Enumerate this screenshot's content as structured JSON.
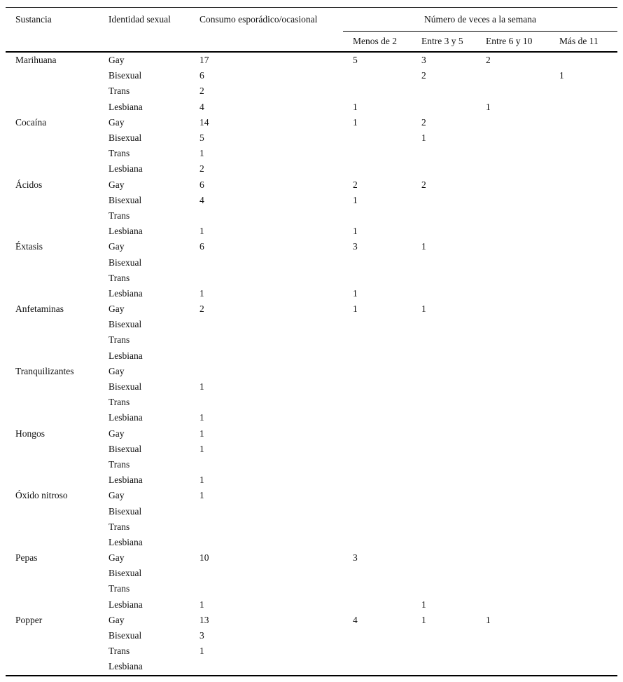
{
  "table": {
    "headers": {
      "sustancia": "Sustancia",
      "identidad": "Identidad sexual",
      "consumo": "Consumo esporádico/ocasional",
      "spanner": "Número de veces a la semana",
      "freq": [
        "Menos de 2",
        "Entre 3 y 5",
        "Entre 6 y 10",
        "Más de 11"
      ]
    },
    "groups": [
      {
        "sustancia": "Marihuana",
        "rows": [
          {
            "identidad": "Gay",
            "consumo": "17",
            "veces": [
              "5",
              "3",
              "2",
              ""
            ]
          },
          {
            "identidad": "Bisexual",
            "consumo": "6",
            "veces": [
              "",
              "2",
              "",
              "1"
            ]
          },
          {
            "identidad": "Trans",
            "consumo": "2",
            "veces": [
              "",
              "",
              "",
              ""
            ]
          },
          {
            "identidad": "Lesbiana",
            "consumo": "4",
            "veces": [
              "1",
              "",
              "1",
              ""
            ]
          }
        ]
      },
      {
        "sustancia": "Cocaína",
        "rows": [
          {
            "identidad": "Gay",
            "consumo": "14",
            "veces": [
              "1",
              "2",
              "",
              ""
            ]
          },
          {
            "identidad": "Bisexual",
            "consumo": "5",
            "veces": [
              "",
              "1",
              "",
              ""
            ]
          },
          {
            "identidad": "Trans",
            "consumo": "1",
            "veces": [
              "",
              "",
              "",
              ""
            ]
          },
          {
            "identidad": "Lesbiana",
            "consumo": "2",
            "veces": [
              "",
              "",
              "",
              ""
            ]
          }
        ]
      },
      {
        "sustancia": "Ácidos",
        "rows": [
          {
            "identidad": "Gay",
            "consumo": "6",
            "veces": [
              "2",
              "2",
              "",
              ""
            ]
          },
          {
            "identidad": "Bisexual",
            "consumo": "4",
            "veces": [
              "1",
              "",
              "",
              ""
            ]
          },
          {
            "identidad": "Trans",
            "consumo": "",
            "veces": [
              "",
              "",
              "",
              ""
            ]
          },
          {
            "identidad": "Lesbiana",
            "consumo": "1",
            "veces": [
              "1",
              "",
              "",
              ""
            ]
          }
        ]
      },
      {
        "sustancia": "Éxtasis",
        "rows": [
          {
            "identidad": "Gay",
            "consumo": "6",
            "veces": [
              "3",
              "1",
              "",
              ""
            ]
          },
          {
            "identidad": "Bisexual",
            "consumo": "",
            "veces": [
              "",
              "",
              "",
              ""
            ]
          },
          {
            "identidad": "Trans",
            "consumo": "",
            "veces": [
              "",
              "",
              "",
              ""
            ]
          },
          {
            "identidad": "Lesbiana",
            "consumo": "1",
            "veces": [
              "1",
              "",
              "",
              ""
            ]
          }
        ]
      },
      {
        "sustancia": "Anfetaminas",
        "rows": [
          {
            "identidad": "Gay",
            "consumo": "2",
            "veces": [
              "1",
              "1",
              "",
              ""
            ]
          },
          {
            "identidad": "Bisexual",
            "consumo": "",
            "veces": [
              "",
              "",
              "",
              ""
            ]
          },
          {
            "identidad": "Trans",
            "consumo": "",
            "veces": [
              "",
              "",
              "",
              ""
            ]
          },
          {
            "identidad": "Lesbiana",
            "consumo": "",
            "veces": [
              "",
              "",
              "",
              ""
            ]
          }
        ]
      },
      {
        "sustancia": "Tranquilizantes",
        "rows": [
          {
            "identidad": "Gay",
            "consumo": "",
            "veces": [
              "",
              "",
              "",
              ""
            ]
          },
          {
            "identidad": "Bisexual",
            "consumo": "1",
            "veces": [
              "",
              "",
              "",
              ""
            ]
          },
          {
            "identidad": "Trans",
            "consumo": "",
            "veces": [
              "",
              "",
              "",
              ""
            ]
          },
          {
            "identidad": "Lesbiana",
            "consumo": "1",
            "veces": [
              "",
              "",
              "",
              ""
            ]
          }
        ]
      },
      {
        "sustancia": "Hongos",
        "rows": [
          {
            "identidad": "Gay",
            "consumo": "1",
            "veces": [
              "",
              "",
              "",
              ""
            ]
          },
          {
            "identidad": "Bisexual",
            "consumo": "1",
            "veces": [
              "",
              "",
              "",
              ""
            ]
          },
          {
            "identidad": "Trans",
            "consumo": "",
            "veces": [
              "",
              "",
              "",
              ""
            ]
          },
          {
            "identidad": "Lesbiana",
            "consumo": "1",
            "veces": [
              "",
              "",
              "",
              ""
            ]
          }
        ]
      },
      {
        "sustancia": "Óxido nitroso",
        "rows": [
          {
            "identidad": "Gay",
            "consumo": "1",
            "veces": [
              "",
              "",
              "",
              ""
            ]
          },
          {
            "identidad": "Bisexual",
            "consumo": "",
            "veces": [
              "",
              "",
              "",
              ""
            ]
          },
          {
            "identidad": "Trans",
            "consumo": "",
            "veces": [
              "",
              "",
              "",
              ""
            ]
          },
          {
            "identidad": "Lesbiana",
            "consumo": "",
            "veces": [
              "",
              "",
              "",
              ""
            ]
          }
        ]
      },
      {
        "sustancia": "Pepas",
        "rows": [
          {
            "identidad": "Gay",
            "consumo": "10",
            "veces": [
              "3",
              "",
              "",
              ""
            ]
          },
          {
            "identidad": "Bisexual",
            "consumo": "",
            "veces": [
              "",
              "",
              "",
              ""
            ]
          },
          {
            "identidad": "Trans",
            "consumo": "",
            "veces": [
              "",
              "",
              "",
              ""
            ]
          },
          {
            "identidad": "Lesbiana",
            "consumo": "1",
            "veces": [
              "",
              "1",
              "",
              ""
            ]
          }
        ]
      },
      {
        "sustancia": "Popper",
        "rows": [
          {
            "identidad": "Gay",
            "consumo": "13",
            "veces": [
              "4",
              "1",
              "1",
              ""
            ]
          },
          {
            "identidad": "Bisexual",
            "consumo": "3",
            "veces": [
              "",
              "",
              "",
              ""
            ]
          },
          {
            "identidad": "Trans",
            "consumo": "1",
            "veces": [
              "",
              "",
              "",
              ""
            ]
          },
          {
            "identidad": "Lesbiana",
            "consumo": "",
            "veces": [
              "",
              "",
              "",
              ""
            ]
          }
        ]
      }
    ]
  }
}
